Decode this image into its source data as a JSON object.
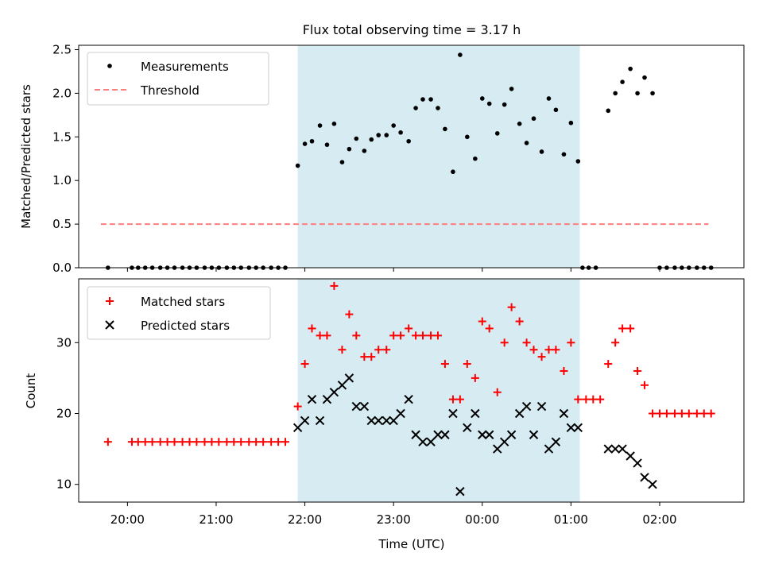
{
  "title": "Flux total observing time = 3.17 h",
  "colors": {
    "shade": "#add8e6",
    "matched": "#ff0000",
    "predicted": "#000000",
    "threshold": "#ff7f7f",
    "measure": "#000000"
  },
  "x_ticks": [
    "20:00",
    "21:00",
    "22:00",
    "23:00",
    "00:00",
    "01:00",
    "02:00"
  ],
  "chart_data": [
    {
      "type": "scatter",
      "ylabel": "Matched/Predicted stars",
      "ylim": [
        0,
        2.55
      ],
      "yticks": [
        "0.0",
        "0.5",
        "1.0",
        "1.5",
        "2.0",
        "2.5"
      ],
      "xrange_h": [
        19.45,
        26.95
      ],
      "shaded_span_h": [
        21.92,
        25.1
      ],
      "legend": {
        "position": "top-left",
        "measure_label": "Measurements",
        "threshold_label": "Threshold"
      },
      "threshold": {
        "value": 0.5,
        "x_h": [
          19.7,
          26.55
        ]
      },
      "series": [
        {
          "name": "Measurements",
          "points": [
            [
              19.78,
              0
            ],
            [
              20.05,
              0
            ],
            [
              20.12,
              0
            ],
            [
              20.2,
              0
            ],
            [
              20.28,
              0
            ],
            [
              20.37,
              0
            ],
            [
              20.45,
              0
            ],
            [
              20.53,
              0
            ],
            [
              20.62,
              0
            ],
            [
              20.7,
              0
            ],
            [
              20.78,
              0
            ],
            [
              20.87,
              0
            ],
            [
              20.95,
              0
            ],
            [
              21.03,
              0
            ],
            [
              21.12,
              0
            ],
            [
              21.2,
              0
            ],
            [
              21.28,
              0
            ],
            [
              21.37,
              0
            ],
            [
              21.45,
              0
            ],
            [
              21.53,
              0
            ],
            [
              21.62,
              0
            ],
            [
              21.7,
              0
            ],
            [
              21.78,
              0
            ],
            [
              21.92,
              1.17
            ],
            [
              22.0,
              1.42
            ],
            [
              22.08,
              1.45
            ],
            [
              22.17,
              1.63
            ],
            [
              22.25,
              1.41
            ],
            [
              22.33,
              1.65
            ],
            [
              22.42,
              1.21
            ],
            [
              22.5,
              1.36
            ],
            [
              22.58,
              1.48
            ],
            [
              22.67,
              1.34
            ],
            [
              22.75,
              1.47
            ],
            [
              22.83,
              1.52
            ],
            [
              22.92,
              1.52
            ],
            [
              23.0,
              1.63
            ],
            [
              23.08,
              1.55
            ],
            [
              23.17,
              1.45
            ],
            [
              23.25,
              1.83
            ],
            [
              23.33,
              1.93
            ],
            [
              23.42,
              1.93
            ],
            [
              23.5,
              1.83
            ],
            [
              23.58,
              1.59
            ],
            [
              23.67,
              1.1
            ],
            [
              23.75,
              2.44
            ],
            [
              23.83,
              1.5
            ],
            [
              23.92,
              1.25
            ],
            [
              24.0,
              1.94
            ],
            [
              24.08,
              1.88
            ],
            [
              24.17,
              1.54
            ],
            [
              24.25,
              1.87
            ],
            [
              24.33,
              2.05
            ],
            [
              24.42,
              1.65
            ],
            [
              24.5,
              1.43
            ],
            [
              24.58,
              1.71
            ],
            [
              24.67,
              1.33
            ],
            [
              24.75,
              1.94
            ],
            [
              24.83,
              1.81
            ],
            [
              24.92,
              1.3
            ],
            [
              25.0,
              1.66
            ],
            [
              25.08,
              1.22
            ],
            [
              25.13,
              0
            ],
            [
              25.2,
              0
            ],
            [
              25.28,
              0
            ],
            [
              25.42,
              1.8
            ],
            [
              25.5,
              2.0
            ],
            [
              25.58,
              2.13
            ],
            [
              25.67,
              2.28
            ],
            [
              25.75,
              2.0
            ],
            [
              25.83,
              2.18
            ],
            [
              25.92,
              2.0
            ],
            [
              26.0,
              0
            ],
            [
              26.08,
              0
            ],
            [
              26.17,
              0
            ],
            [
              26.25,
              0
            ],
            [
              26.33,
              0
            ],
            [
              26.42,
              0
            ],
            [
              26.5,
              0
            ],
            [
              26.58,
              0
            ]
          ]
        },
        {
          "name": "Threshold",
          "values": [
            0.5,
            0.5
          ]
        }
      ]
    },
    {
      "type": "scatter",
      "xlabel": "Time (UTC)",
      "ylabel": "Count",
      "ylim": [
        7.5,
        39
      ],
      "yticks": [
        "10",
        "20",
        "30"
      ],
      "xrange_h": [
        19.45,
        26.95
      ],
      "shaded_span_h": [
        21.92,
        25.1
      ],
      "legend": {
        "position": "top-left",
        "matched_label": "Matched stars",
        "predicted_label": "Predicted stars"
      },
      "series": [
        {
          "name": "Matched stars",
          "points": [
            [
              19.78,
              16
            ],
            [
              20.05,
              16
            ],
            [
              20.12,
              16
            ],
            [
              20.2,
              16
            ],
            [
              20.28,
              16
            ],
            [
              20.37,
              16
            ],
            [
              20.45,
              16
            ],
            [
              20.53,
              16
            ],
            [
              20.62,
              16
            ],
            [
              20.7,
              16
            ],
            [
              20.78,
              16
            ],
            [
              20.87,
              16
            ],
            [
              20.95,
              16
            ],
            [
              21.03,
              16
            ],
            [
              21.12,
              16
            ],
            [
              21.2,
              16
            ],
            [
              21.28,
              16
            ],
            [
              21.37,
              16
            ],
            [
              21.45,
              16
            ],
            [
              21.53,
              16
            ],
            [
              21.62,
              16
            ],
            [
              21.7,
              16
            ],
            [
              21.78,
              16
            ],
            [
              21.92,
              21
            ],
            [
              22.0,
              27
            ],
            [
              22.08,
              32
            ],
            [
              22.17,
              31
            ],
            [
              22.25,
              31
            ],
            [
              22.33,
              38
            ],
            [
              22.42,
              29
            ],
            [
              22.5,
              34
            ],
            [
              22.58,
              31
            ],
            [
              22.67,
              28
            ],
            [
              22.75,
              28
            ],
            [
              22.83,
              29
            ],
            [
              22.92,
              29
            ],
            [
              23.0,
              31
            ],
            [
              23.08,
              31
            ],
            [
              23.17,
              32
            ],
            [
              23.25,
              31
            ],
            [
              23.33,
              31
            ],
            [
              23.42,
              31
            ],
            [
              23.5,
              31
            ],
            [
              23.58,
              27
            ],
            [
              23.67,
              22
            ],
            [
              23.75,
              22
            ],
            [
              23.83,
              27
            ],
            [
              23.92,
              25
            ],
            [
              24.0,
              33
            ],
            [
              24.08,
              32
            ],
            [
              24.17,
              23
            ],
            [
              24.25,
              30
            ],
            [
              24.33,
              35
            ],
            [
              24.42,
              33
            ],
            [
              24.5,
              30
            ],
            [
              24.58,
              29
            ],
            [
              24.67,
              28
            ],
            [
              24.75,
              29
            ],
            [
              24.83,
              29
            ],
            [
              24.92,
              26
            ],
            [
              25.0,
              30
            ],
            [
              25.08,
              22
            ],
            [
              25.17,
              22
            ],
            [
              25.25,
              22
            ],
            [
              25.33,
              22
            ],
            [
              25.42,
              27
            ],
            [
              25.5,
              30
            ],
            [
              25.58,
              32
            ],
            [
              25.67,
              32
            ],
            [
              25.75,
              26
            ],
            [
              25.83,
              24
            ],
            [
              25.92,
              20
            ],
            [
              26.0,
              20
            ],
            [
              26.08,
              20
            ],
            [
              26.17,
              20
            ],
            [
              26.25,
              20
            ],
            [
              26.33,
              20
            ],
            [
              26.42,
              20
            ],
            [
              26.5,
              20
            ],
            [
              26.58,
              20
            ]
          ]
        },
        {
          "name": "Predicted stars",
          "points": [
            [
              21.92,
              18
            ],
            [
              22.0,
              19
            ],
            [
              22.08,
              22
            ],
            [
              22.17,
              19
            ],
            [
              22.25,
              22
            ],
            [
              22.33,
              23
            ],
            [
              22.42,
              24
            ],
            [
              22.5,
              25
            ],
            [
              22.58,
              21
            ],
            [
              22.67,
              21
            ],
            [
              22.75,
              19
            ],
            [
              22.83,
              19
            ],
            [
              22.92,
              19
            ],
            [
              23.0,
              19
            ],
            [
              23.08,
              20
            ],
            [
              23.17,
              22
            ],
            [
              23.25,
              17
            ],
            [
              23.33,
              16
            ],
            [
              23.42,
              16
            ],
            [
              23.5,
              17
            ],
            [
              23.58,
              17
            ],
            [
              23.67,
              20
            ],
            [
              23.75,
              9
            ],
            [
              23.83,
              18
            ],
            [
              23.92,
              20
            ],
            [
              24.0,
              17
            ],
            [
              24.08,
              17
            ],
            [
              24.17,
              15
            ],
            [
              24.25,
              16
            ],
            [
              24.33,
              17
            ],
            [
              24.42,
              20
            ],
            [
              24.5,
              21
            ],
            [
              24.58,
              17
            ],
            [
              24.67,
              21
            ],
            [
              24.75,
              15
            ],
            [
              24.83,
              16
            ],
            [
              24.92,
              20
            ],
            [
              25.0,
              18
            ],
            [
              25.08,
              18
            ],
            [
              25.42,
              15
            ],
            [
              25.5,
              15
            ],
            [
              25.58,
              15
            ],
            [
              25.67,
              14
            ],
            [
              25.75,
              13
            ],
            [
              25.83,
              11
            ],
            [
              25.92,
              10
            ]
          ]
        }
      ]
    }
  ]
}
